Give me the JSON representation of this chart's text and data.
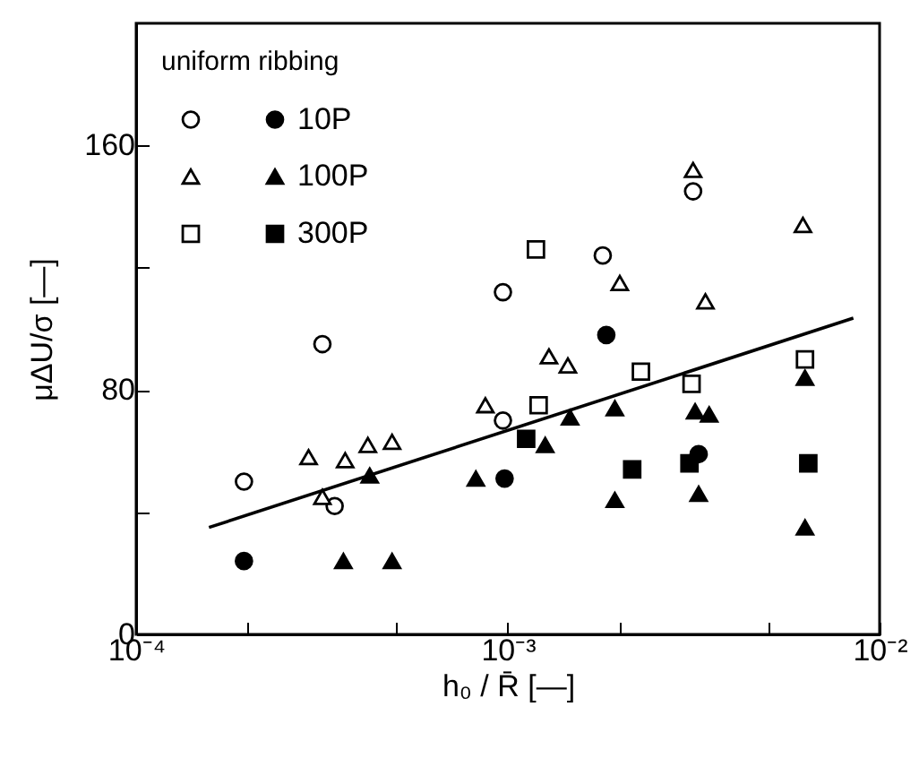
{
  "chart_data": {
    "type": "scatter",
    "xlabel": "h₀ / R̄  [—]",
    "ylabel": "μΔU/σ  [—]",
    "legend_title": "uniform ribbing",
    "log": "x",
    "grid": false,
    "legend": "top left",
    "xlim": [
      0.0001,
      0.01
    ],
    "xticks": [
      {
        "value": 0.0001,
        "label": "10⁻⁴"
      },
      {
        "value": 0.0002,
        "label": null
      },
      {
        "value": 0.0005,
        "label": null
      },
      {
        "value": 0.001,
        "label": "10⁻³"
      },
      {
        "value": 0.002,
        "label": null
      },
      {
        "value": 0.005,
        "label": null
      },
      {
        "value": 0.01,
        "label": "10⁻²"
      }
    ],
    "ylim": [
      0,
      200
    ],
    "yticks": [
      0,
      {
        "value": 40,
        "label": null
      },
      80,
      {
        "value": 120,
        "label": null
      },
      160
    ],
    "series": [
      {
        "marker": "circle",
        "color": "#ffffff",
        "x": [
          0.000195,
          0.000317,
          0.000342,
          0.00097,
          0.00097,
          0.0018,
          0.00315
        ],
        "values": [
          50,
          95,
          42,
          112,
          70,
          124,
          145
        ]
      },
      {
        "name": "10P",
        "marker": "circle",
        "color": "#000000",
        "x": [
          0.000195,
          0.00098,
          0.00184,
          0.00326
        ],
        "values": [
          24,
          51,
          98,
          59
        ]
      },
      {
        "marker": "triangle",
        "color": "#ffffff",
        "x": [
          0.000291,
          0.000317,
          0.000365,
          0.00042,
          0.000488,
          0.00087,
          0.00129,
          0.00145,
          0.002,
          0.00315,
          0.0034,
          0.00622
        ],
        "values": [
          58,
          45,
          57,
          62,
          63,
          75,
          91,
          88,
          115,
          152,
          109,
          134
        ]
      },
      {
        "name": "100P",
        "marker": "triangle",
        "color": "#000000",
        "x": [
          0.000361,
          0.000425,
          0.000488,
          0.00082,
          0.00126,
          0.00147,
          0.00194,
          0.00194,
          0.00319,
          0.00348,
          0.00326,
          0.0063,
          0.0063
        ],
        "values": [
          24,
          52,
          24,
          51,
          62,
          71,
          74,
          44,
          73,
          72,
          46,
          84,
          35
        ]
      },
      {
        "marker": "square",
        "color": "#ffffff",
        "x": [
          0.00119,
          0.00121,
          0.00228,
          0.00312,
          0.0063
        ],
        "values": [
          126,
          75,
          86,
          82,
          90
        ]
      },
      {
        "name": "300P",
        "marker": "square",
        "color": "#000000",
        "x": [
          0.00112,
          0.00216,
          0.00308,
          0.00643
        ],
        "values": [
          64,
          54,
          56,
          56
        ]
      },
      {
        "type": "line",
        "color": "#000000",
        "x": [
          0.000157,
          0.0085
        ],
        "values": [
          35,
          103.5
        ]
      }
    ]
  }
}
